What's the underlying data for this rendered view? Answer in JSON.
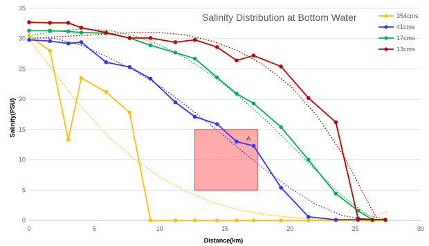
{
  "chart_data": {
    "type": "line",
    "title": "Salinity Distribution at Bottom Water",
    "xlabel": "Distance(km)",
    "ylabel": "Salinity(PSU)",
    "xlim": [
      0,
      30
    ],
    "ylim": [
      0,
      35
    ],
    "xticks": [
      "0",
      "5",
      "10",
      "15",
      "20",
      "25",
      "30"
    ],
    "yticks": [
      "0",
      "5",
      "10",
      "15",
      "20",
      "25",
      "30",
      "35"
    ],
    "grid": "horizontal",
    "legend": "right",
    "series": [
      {
        "name": "354cms",
        "color": "#FFC000",
        "x": [
          0,
          1.6,
          3.0,
          4.0,
          5.9,
          7.7,
          9.3,
          11.2,
          12.7,
          14.4,
          15.9,
          17.2,
          19.3,
          21.4,
          23.5,
          25.2,
          26.3,
          27.3
        ],
        "y": [
          30.5,
          28.0,
          13.3,
          23.5,
          21.2,
          17.8,
          0,
          0,
          0,
          0,
          0,
          0,
          0,
          0,
          0,
          0,
          0,
          0
        ]
      },
      {
        "name": "41cms",
        "color": "#3333FF",
        "x": [
          0,
          1.6,
          3.0,
          4.0,
          5.9,
          7.7,
          9.3,
          11.2,
          12.7,
          14.4,
          15.9,
          17.2,
          19.3,
          21.4,
          23.5,
          25.2,
          26.3,
          27.3
        ],
        "y": [
          29.8,
          29.6,
          29.2,
          29.4,
          26.1,
          25.3,
          23.4,
          19.5,
          17.1,
          15.9,
          13.0,
          12.3,
          5.4,
          0.6,
          0.1,
          0.1,
          0.1,
          0.1
        ]
      },
      {
        "name": "17cms",
        "color": "#00B050",
        "x": [
          0,
          1.6,
          3.0,
          4.0,
          5.9,
          7.7,
          9.3,
          11.2,
          12.7,
          14.4,
          15.9,
          17.2,
          19.3,
          21.4,
          23.5,
          25.2,
          26.3,
          27.3
        ],
        "y": [
          31.3,
          31.3,
          31.2,
          31.0,
          30.9,
          30.1,
          28.9,
          27.7,
          26.7,
          23.6,
          20.9,
          19.3,
          15.4,
          10.0,
          4.4,
          1.6,
          0.1,
          0.1
        ]
      },
      {
        "name": "13cms",
        "color": "#C00000",
        "x": [
          0,
          1.6,
          3.0,
          4.0,
          5.9,
          7.7,
          9.3,
          11.2,
          12.7,
          14.4,
          15.9,
          17.2,
          19.3,
          21.4,
          23.5,
          25.2,
          26.3,
          27.3
        ],
        "y": [
          32.7,
          32.6,
          32.6,
          31.8,
          31.0,
          30.1,
          30.1,
          29.4,
          29.8,
          28.6,
          26.4,
          27.2,
          25.4,
          20.2,
          16.2,
          0.3,
          0.1,
          0.1
        ]
      }
    ],
    "trendlines": [
      {
        "series": "354cms",
        "color": "#FFC000",
        "x": [
          0,
          2,
          4,
          6,
          8,
          10,
          12,
          14,
          16,
          18,
          20,
          22,
          24,
          26,
          27.5
        ],
        "y": [
          30.0,
          24.2,
          18.7,
          14.0,
          10.2,
          7.2,
          4.8,
          3.0,
          1.8,
          1.0,
          0.5,
          0.2,
          0.1,
          0.3,
          1.5
        ]
      },
      {
        "series": "41cms",
        "color": "#3333FF",
        "x": [
          0,
          2,
          4,
          6,
          8,
          10,
          12,
          14,
          16,
          18,
          20,
          22,
          24,
          26,
          27.3
        ],
        "y": [
          30.2,
          30.0,
          28.9,
          27.0,
          24.8,
          22.2,
          19.0,
          15.6,
          12.0,
          8.5,
          5.3,
          2.6,
          0.8,
          0.0,
          0.1
        ]
      },
      {
        "series": "17cms",
        "color": "#00B050",
        "x": [
          0,
          2,
          4,
          6,
          8,
          10,
          12,
          14,
          16,
          18,
          20,
          22,
          24,
          26,
          27.3
        ],
        "y": [
          30.5,
          31.2,
          31.6,
          31.4,
          30.5,
          29.0,
          26.8,
          24.0,
          20.6,
          16.8,
          12.6,
          8.2,
          4.0,
          0.8,
          0.2
        ]
      },
      {
        "series": "13cms",
        "color": "#C00000",
        "x": [
          0,
          2,
          4,
          6,
          8,
          10,
          12,
          14,
          16,
          18,
          20,
          22,
          24,
          25,
          26,
          26.6
        ],
        "y": [
          30.0,
          30.3,
          30.5,
          30.8,
          31.0,
          31.0,
          30.6,
          29.6,
          28.0,
          25.6,
          22.2,
          17.4,
          11.0,
          7.0,
          2.8,
          0.5
        ]
      }
    ],
    "annotations": [
      {
        "label": "A",
        "x0": 12.7,
        "x1": 17.5,
        "y0": 5,
        "y1": 15,
        "color": "#FF6666"
      }
    ]
  }
}
